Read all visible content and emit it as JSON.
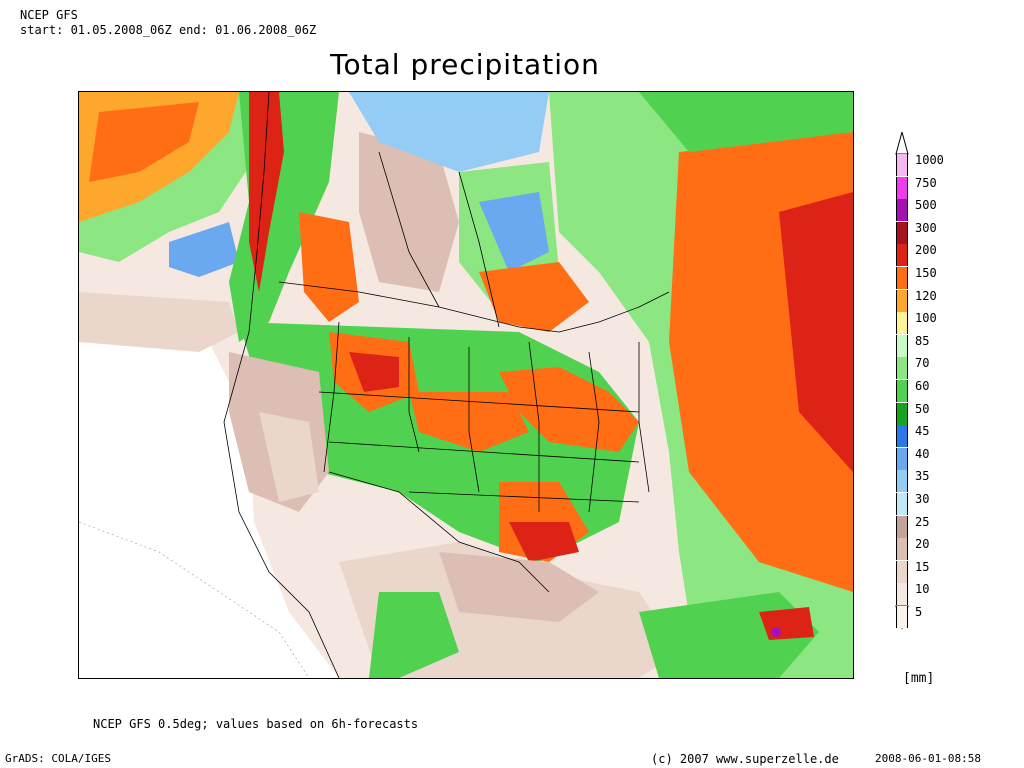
{
  "header": {
    "model": "NCEP GFS",
    "period": "start: 01.05.2008_06Z end: 01.06.2008_06Z"
  },
  "title": "Total precipitation",
  "legend": {
    "levels": [
      "1000",
      "750",
      "500",
      "300",
      "200",
      "150",
      "120",
      "100",
      "85",
      "70",
      "60",
      "50",
      "45",
      "40",
      "35",
      "30",
      "25",
      "20",
      "15",
      "10",
      "5"
    ],
    "colors": [
      "#f5b8f0",
      "#ee3cee",
      "#a512b4",
      "#a5141e",
      "#dc2315",
      "#ff6e14",
      "#fda82d",
      "#fff39a",
      "#c8fac8",
      "#8ce682",
      "#50d250",
      "#14a41e",
      "#2b78e8",
      "#6aa8f0",
      "#94ccf5",
      "#bfe8f7",
      "#c4a398",
      "#dcbeb4",
      "#ebd6cc",
      "#f5e8e0",
      "#faf3ec"
    ],
    "unit": "[mm]"
  },
  "footer": {
    "note": "NCEP GFS 0.5deg; values based on 6h-forecasts",
    "software": "GrADS: COLA/IGES",
    "copyright": "(c) 2007 www.superzelle.de",
    "timestamp": "2008-06-01-08:58"
  }
}
